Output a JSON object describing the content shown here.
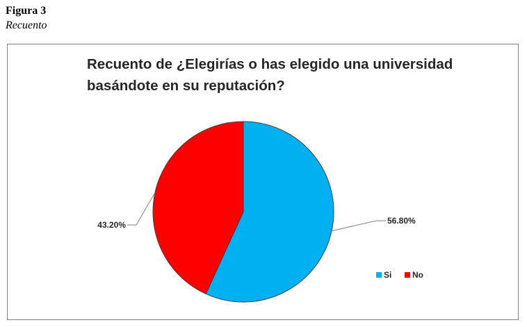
{
  "figure": {
    "label": "Figura 3",
    "caption": "Recuento"
  },
  "chart_data": {
    "type": "pie",
    "title": "Recuento de ¿Elegirías o has elegido una universidad basándote en su reputación?",
    "categories": [
      "Si",
      "No"
    ],
    "values": [
      56.8,
      43.2
    ],
    "data_labels": [
      "56.80%",
      "43.20%"
    ],
    "colors": [
      "#00b0f0",
      "#ff0000"
    ],
    "legend": {
      "position": "bottom-right",
      "entries": [
        "Si",
        "No"
      ]
    }
  }
}
